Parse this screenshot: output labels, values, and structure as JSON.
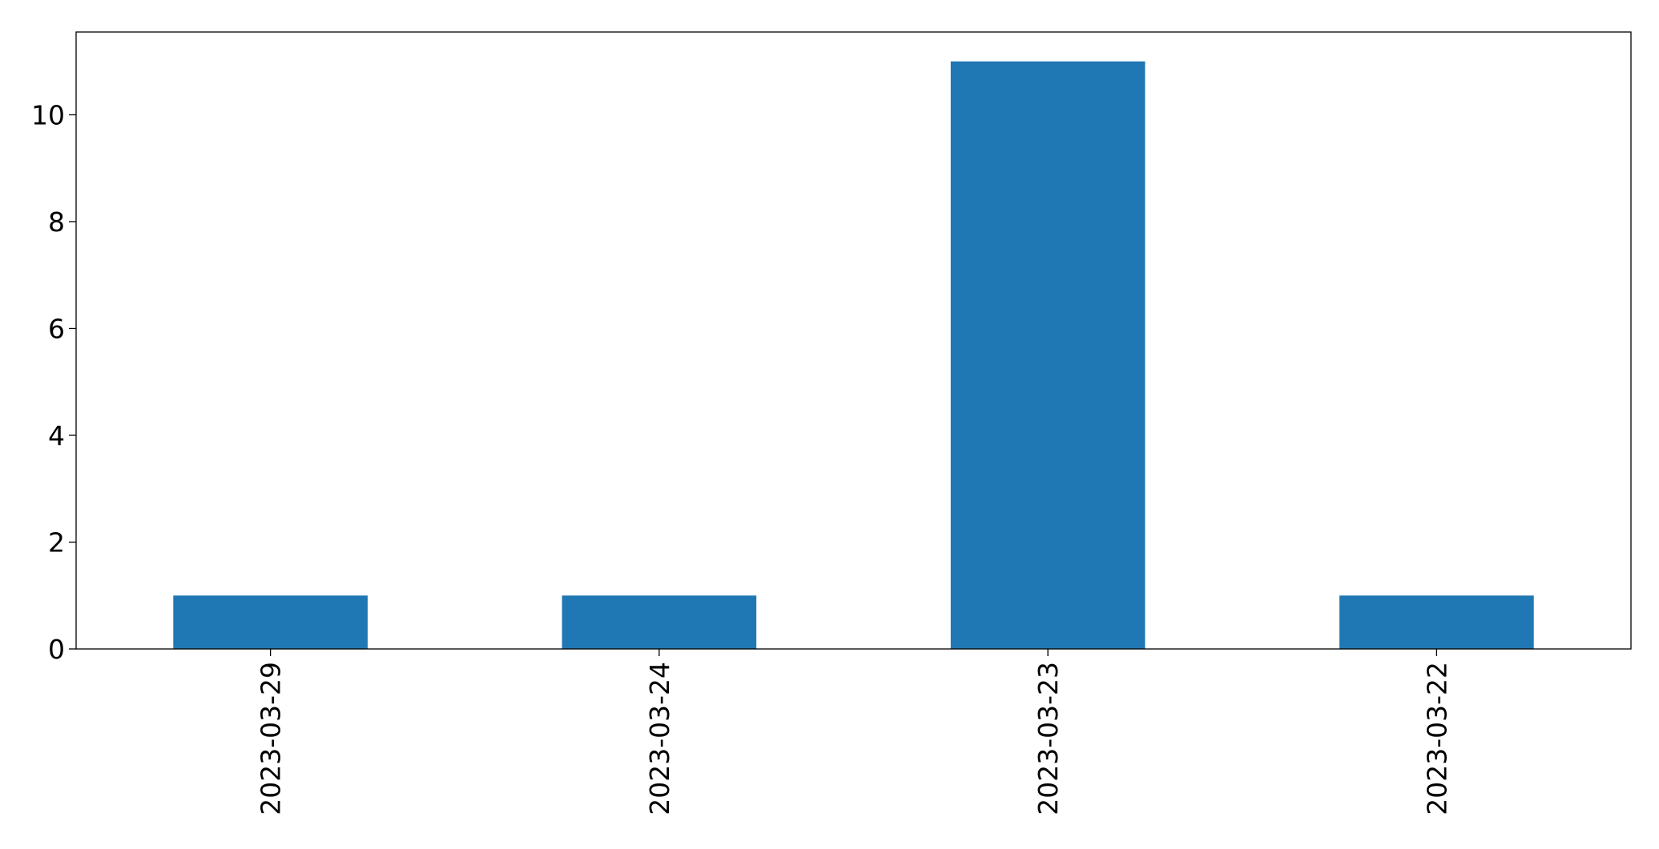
{
  "chart_data": {
    "type": "bar",
    "title": "",
    "xlabel": "",
    "ylabel": "",
    "categories": [
      "2023-03-29",
      "2023-03-24",
      "2023-03-23",
      "2023-03-22"
    ],
    "series": [
      {
        "values": [
          1,
          1,
          11,
          1
        ],
        "color": "#1f77b4"
      }
    ],
    "ylim": [
      0,
      11.55
    ],
    "yticks": [
      0,
      2,
      4,
      6,
      8,
      10
    ],
    "grid": false,
    "legend": false
  }
}
